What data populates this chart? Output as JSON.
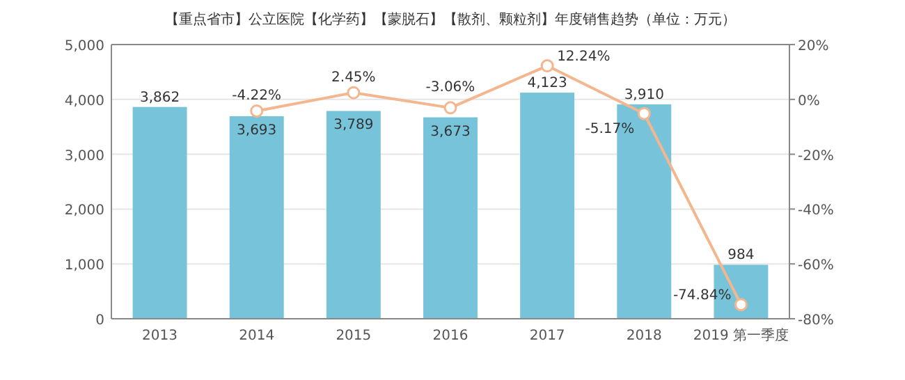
{
  "chart_data": {
    "type": "bar",
    "title": "【重点省市】公立医院【化学药】【蒙脱石】【散剂、颗粒剂】年度销售趋势（单位：万元）",
    "categories": [
      "2013",
      "2014",
      "2015",
      "2016",
      "2017",
      "2018",
      "2019 第一季度"
    ],
    "series": [
      {
        "color": "#77c4da",
        "values": [
          3862,
          3693,
          3789,
          3673,
          4123,
          3910,
          984
        ],
        "value_labels": [
          "3,862",
          "3,693",
          "3,789",
          "3,673",
          "4,123",
          "3,910",
          "984"
        ]
      },
      {
        "type": "line",
        "axis": "y2",
        "color": "#f4b68e",
        "marker": "circle",
        "values": [
          null,
          -4.22,
          2.45,
          -3.06,
          12.24,
          -5.17,
          -74.84
        ],
        "value_labels": [
          null,
          "-4.22%",
          "2.45%",
          "-3.06%",
          "12.24%",
          "-5.17%",
          "-74.84%"
        ]
      }
    ],
    "ylim": [
      0,
      5000
    ],
    "yticks": [
      0,
      {
        "value": 1000,
        "label": "1,000"
      },
      {
        "value": 2000,
        "label": "2,000"
      },
      {
        "value": 3000,
        "label": "3,000"
      },
      {
        "value": 4000,
        "label": "4,000"
      },
      {
        "value": 5000,
        "label": "5,000"
      }
    ],
    "y2lim": [
      -80,
      20
    ],
    "y2ticks": [
      {
        "value": -80,
        "label": "-80%"
      },
      {
        "value": -60,
        "label": "-60%"
      },
      {
        "value": -40,
        "label": "-40%"
      },
      {
        "value": -20,
        "label": "-20%"
      },
      {
        "value": 0,
        "label": "0%"
      },
      {
        "value": 20,
        "label": "20%"
      }
    ],
    "grid": "y"
  }
}
